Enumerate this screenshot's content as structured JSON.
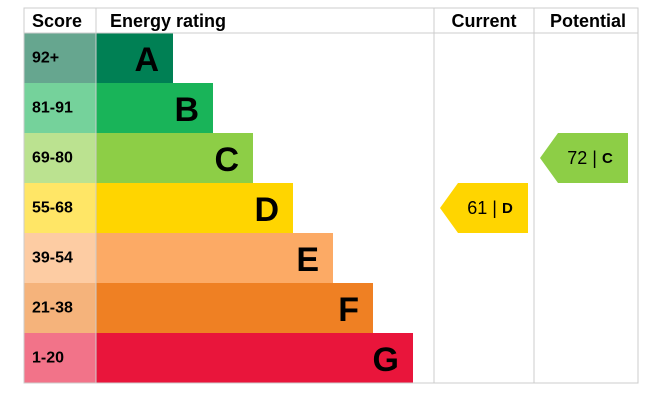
{
  "header": {
    "score": "Score",
    "rating": "Energy rating",
    "current": "Current",
    "potential": "Potential"
  },
  "bands": [
    {
      "range": "92+",
      "letter": "A",
      "color": "#008054",
      "score_color": "#66a68f"
    },
    {
      "range": "81-91",
      "letter": "B",
      "color": "#19b459",
      "score_color": "#75d29b"
    },
    {
      "range": "69-80",
      "letter": "C",
      "color": "#8dce46",
      "score_color": "#bbe290"
    },
    {
      "range": "55-68",
      "letter": "D",
      "color": "#ffd500",
      "score_color": "#ffe666"
    },
    {
      "range": "39-54",
      "letter": "E",
      "color": "#fcaa65",
      "score_color": "#fdcca3"
    },
    {
      "range": "21-38",
      "letter": "F",
      "color": "#ef8023",
      "score_color": "#f5b37b"
    },
    {
      "range": "1-20",
      "letter": "G",
      "color": "#e9153b",
      "score_color": "#f27389"
    }
  ],
  "current": {
    "value": 61,
    "separator": "|",
    "letter": "D"
  },
  "potential": {
    "value": 72,
    "separator": "|",
    "letter": "C"
  }
}
